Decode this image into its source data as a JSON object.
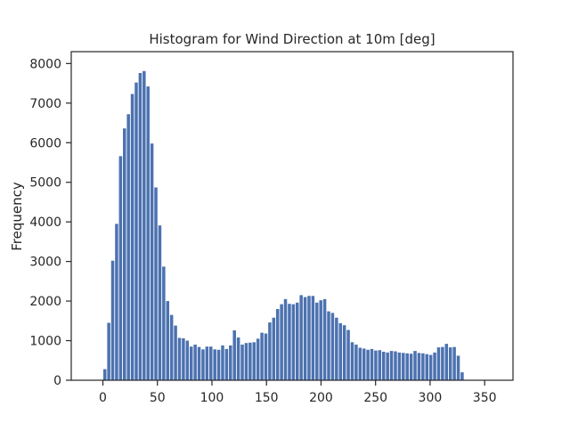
{
  "chart_data": {
    "type": "bar",
    "title": "Histogram for Wind Direction at 10m [deg]",
    "xlabel": "",
    "ylabel": "Frequency",
    "xlim": [
      -29,
      376
    ],
    "ylim": [
      0,
      8300
    ],
    "xticks": [
      0,
      50,
      100,
      150,
      200,
      250,
      300,
      350
    ],
    "yticks": [
      0,
      1000,
      2000,
      3000,
      4000,
      5000,
      6000,
      7000,
      8000
    ],
    "bin_width": 3.6,
    "bin_start": 0,
    "grid": false,
    "bar_color": "#4c72b0",
    "values": [
      280,
      1450,
      3020,
      3950,
      5660,
      6360,
      6720,
      7230,
      7520,
      7760,
      7810,
      7420,
      5980,
      4870,
      3910,
      2870,
      2000,
      1650,
      1380,
      1070,
      1060,
      1000,
      850,
      900,
      840,
      780,
      850,
      850,
      780,
      770,
      880,
      790,
      880,
      1260,
      1080,
      900,
      940,
      950,
      960,
      1050,
      1200,
      1180,
      1460,
      1580,
      1800,
      1920,
      2050,
      1930,
      1920,
      1960,
      2150,
      2100,
      2130,
      2130,
      1960,
      2020,
      2050,
      1740,
      1700,
      1580,
      1440,
      1390,
      1270,
      960,
      900,
      820,
      800,
      770,
      790,
      750,
      760,
      720,
      700,
      740,
      730,
      700,
      690,
      680,
      670,
      740,
      690,
      680,
      660,
      640,
      700,
      830,
      840,
      920,
      830,
      840,
      620,
      200
    ]
  }
}
